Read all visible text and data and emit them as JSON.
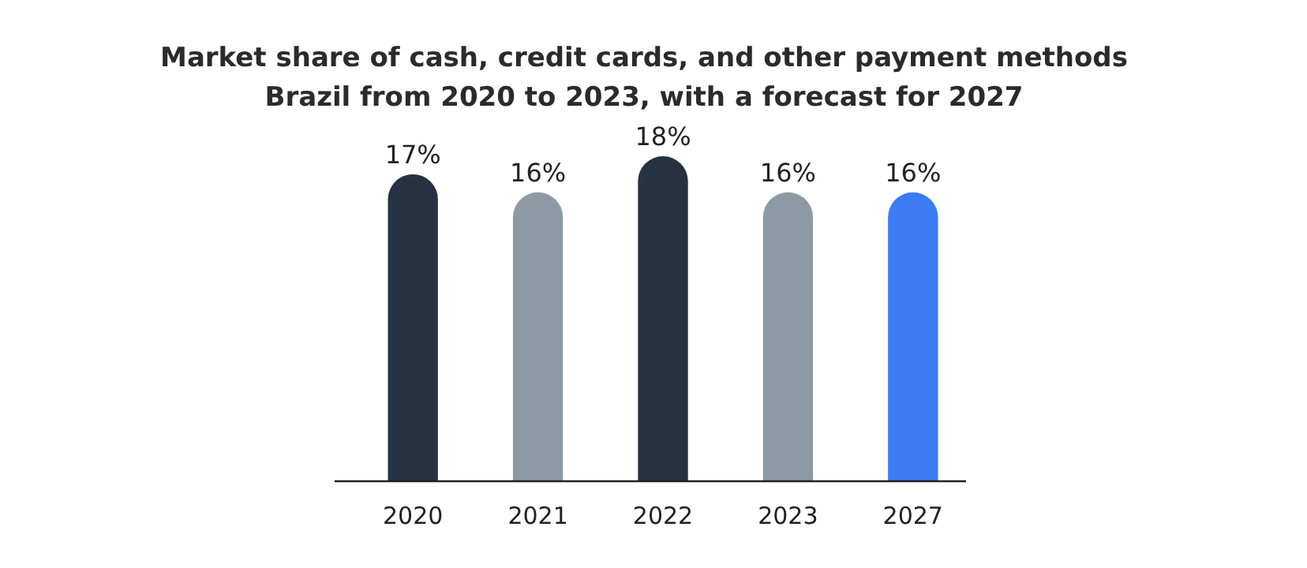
{
  "chart_data": {
    "type": "bar",
    "title": "Market share of cash, credit cards, and other payment methods",
    "subtitle": "Brazil from 2020 to 2023, with a forecast for 2027",
    "categories": [
      "2020",
      "2021",
      "2022",
      "2023",
      "2027"
    ],
    "values": [
      17,
      16,
      18,
      16,
      16
    ],
    "value_labels": [
      "17%",
      "16%",
      "18%",
      "16%",
      "16%"
    ],
    "colors": [
      "#263142",
      "#8e9aa3",
      "#263142",
      "#8e9aa3",
      "#3b7cf6"
    ],
    "ylim": [
      0,
      18
    ]
  }
}
